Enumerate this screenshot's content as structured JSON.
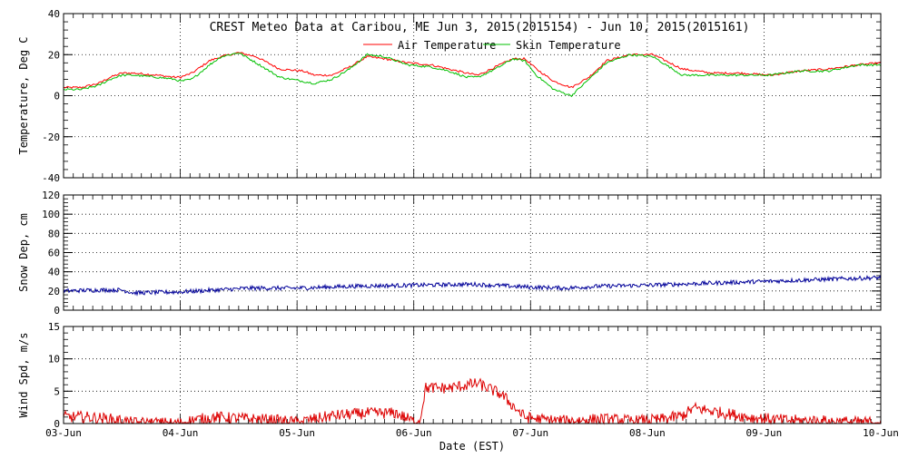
{
  "chart_data": {
    "type": "line",
    "title": "CREST Meteo Data at Caribou, ME   Jun  3, 2015(2015154) - Jun 10, 2015(2015161)",
    "xlabel": "Date (EST)",
    "x_tick_labels": [
      "03-Jun",
      "04-Jun",
      "05-Jun",
      "06-Jun",
      "07-Jun",
      "08-Jun",
      "09-Jun",
      "10-Jun"
    ],
    "x_range_days": [
      0,
      7
    ],
    "grid": true,
    "legend_position": "top-right (inside top panel)",
    "panels": [
      {
        "name": "temperature",
        "ylabel": "Temperature, Deg C",
        "ylim": [
          -40,
          40
        ],
        "y_ticks": [
          -40,
          -20,
          0,
          20,
          40
        ],
        "series": [
          {
            "name": "Air Temperature",
            "color": "#ff0000",
            "x": [
              0,
              0.15,
              0.3,
              0.4,
              0.5,
              0.6,
              0.8,
              0.95,
              1.0,
              1.1,
              1.25,
              1.35,
              1.5,
              1.65,
              1.85,
              2.05,
              2.15,
              2.3,
              2.45,
              2.6,
              2.75,
              2.95,
              3.15,
              3.3,
              3.45,
              3.55,
              3.7,
              3.85,
              3.95,
              4.05,
              4.2,
              4.35,
              4.5,
              4.65,
              4.85,
              5.05,
              5.3,
              5.55,
              5.8,
              6.05,
              6.3,
              6.55,
              6.8,
              7.0
            ],
            "values": [
              4,
              4,
              6,
              9,
              11,
              11,
              10,
              9,
              9,
              11,
              17,
              19,
              21,
              19,
              13,
              12,
              10,
              10,
              14,
              19,
              18,
              16,
              15,
              13,
              11,
              10,
              14,
              18,
              18,
              13,
              7,
              4,
              9,
              17,
              20,
              20,
              13,
              11,
              11,
              10,
              12,
              13,
              15,
              16
            ]
          },
          {
            "name": "Skin Temperature",
            "color": "#00c000",
            "x": [
              0,
              0.15,
              0.3,
              0.4,
              0.5,
              0.6,
              0.8,
              0.95,
              1.0,
              1.1,
              1.25,
              1.35,
              1.5,
              1.65,
              1.85,
              2.05,
              2.15,
              2.3,
              2.45,
              2.6,
              2.75,
              2.95,
              3.15,
              3.3,
              3.45,
              3.55,
              3.7,
              3.85,
              3.95,
              4.05,
              4.2,
              4.35,
              4.5,
              4.65,
              4.85,
              5.05,
              5.3,
              5.55,
              5.8,
              6.05,
              6.3,
              6.55,
              6.8,
              7.0
            ],
            "values": [
              3,
              3,
              5,
              8,
              10,
              10,
              9,
              8,
              7,
              8,
              15,
              19,
              21,
              16,
              9,
              7,
              6,
              8,
              13,
              20,
              19,
              15,
              14,
              12,
              9,
              9,
              13,
              18,
              17,
              10,
              3,
              0,
              8,
              16,
              20,
              19,
              10,
              10,
              10,
              10,
              12,
              12,
              15,
              15
            ]
          }
        ]
      },
      {
        "name": "snow",
        "ylabel": "Snow Dep, cm",
        "ylim": [
          0,
          120
        ],
        "y_ticks": [
          0,
          20,
          40,
          60,
          80,
          100,
          120
        ],
        "series": [
          {
            "name": "",
            "color": "#000099",
            "x": [
              0,
              0.3,
              0.5,
              0.6,
              1.0,
              1.3,
              1.6,
              2.0,
              2.5,
              3.0,
              3.5,
              4.0,
              4.3,
              4.6,
              5.0,
              5.5,
              6.0,
              6.5,
              7.0
            ],
            "values": [
              20,
              21,
              21,
              18,
              19,
              21,
              23,
              23,
              25,
              26,
              27,
              24,
              23,
              25,
              26,
              28,
              30,
              32,
              34
            ],
            "noise": 2.2
          }
        ]
      },
      {
        "name": "wind",
        "ylabel": "Wind Spd, m/s",
        "ylim": [
          0,
          15
        ],
        "y_ticks": [
          0,
          5,
          10,
          15
        ],
        "series": [
          {
            "name": "",
            "color": "#dd0000",
            "x": [
              0,
              0.2,
              0.45,
              0.6,
              0.8,
              1.0,
              1.1,
              1.3,
              1.5,
              1.75,
              2.0,
              2.3,
              2.6,
              2.85,
              3.0,
              3.05,
              3.1,
              3.3,
              3.55,
              3.75,
              3.95,
              4.1,
              4.3,
              4.6,
              4.9,
              5.1,
              5.3,
              5.4,
              5.6,
              5.9,
              6.2,
              6.5,
              6.8,
              7.0
            ],
            "values": [
              1,
              1,
              0.6,
              0.1,
              0.1,
              0,
              0.5,
              1,
              0.8,
              0.6,
              0.2,
              1.2,
              1.6,
              1.6,
              0.3,
              0.2,
              5.5,
              5.5,
              6.2,
              4.5,
              1.0,
              0.6,
              0.4,
              0.7,
              0.4,
              0.6,
              1.2,
              2.4,
              1.8,
              0.9,
              0.5,
              0.4,
              0.2,
              0.2
            ],
            "noise": 0.9
          }
        ]
      }
    ]
  }
}
